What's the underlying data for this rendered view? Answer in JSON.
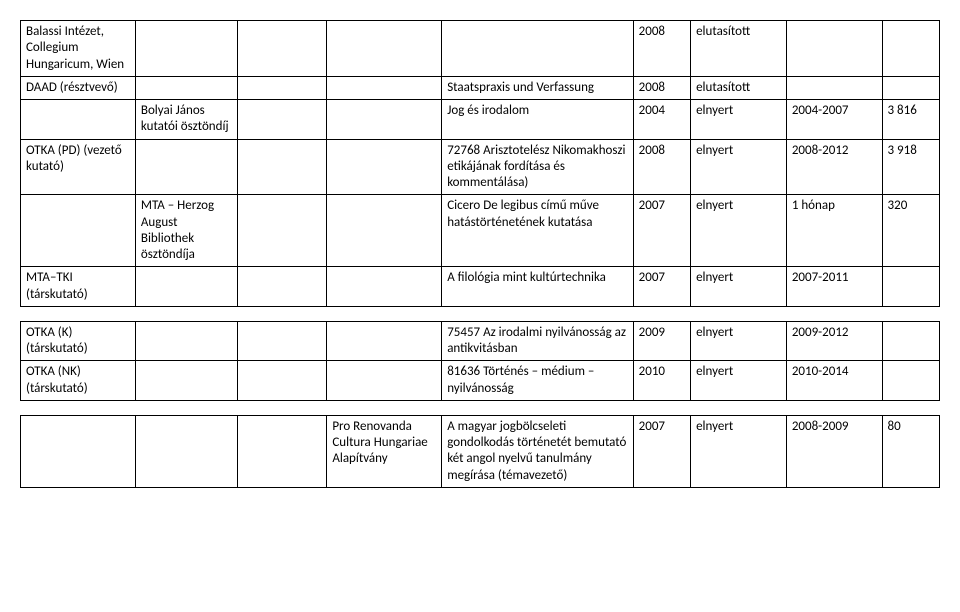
{
  "tables": {
    "t1": {
      "rows": [
        {
          "c1": "Balassi Intézet, Collegium Hungaricum, Wien",
          "c2": "",
          "c3": "",
          "c4": "",
          "c5": "",
          "c6": "2008",
          "c7": "elutasított",
          "c8": "",
          "c9": ""
        },
        {
          "c1": "DAAD (résztvevő)",
          "c2": "",
          "c3": "",
          "c4": "",
          "c5": "Staatspraxis und Verfassung",
          "c6": "2008",
          "c7": "elutasított",
          "c8": "",
          "c9": ""
        },
        {
          "c1": "",
          "c2": "Bolyai János kutatói ösztöndíj",
          "c3": "",
          "c4": "",
          "c5": "Jog és irodalom",
          "c6": "2004",
          "c7": "elnyert",
          "c8": "2004-2007",
          "c9": "3 816"
        },
        {
          "c1": "OTKA (PD) (vezető kutató)",
          "c2": "",
          "c3": "",
          "c4": "",
          "c5": "72768 Arisztotelész Nikomakhoszi etikájának fordítása és kommentálása)",
          "c6": "2008",
          "c7": "elnyert",
          "c8": "2008-2012",
          "c9": "3 918"
        },
        {
          "c1": "",
          "c2": "MTA – Herzog August Bibliothek ösztöndíja",
          "c3": "",
          "c4": "",
          "c5": "Cicero De legibus című műve hatástörténetének kutatása",
          "c6": "2007",
          "c7": "elnyert",
          "c8": "1 hónap",
          "c9": "320"
        },
        {
          "c1": "MTA–TKI (társkutató)",
          "c2": "",
          "c3": "",
          "c4": "",
          "c5": "A filológia mint kultúrtechnika",
          "c6": "2007",
          "c7": "elnyert",
          "c8": "2007-2011",
          "c9": ""
        }
      ]
    },
    "t2": {
      "rows": [
        {
          "c1": "OTKA (K) (társkutató)",
          "c2": "",
          "c3": "",
          "c4": "",
          "c5": "75457 Az irodalmi nyilvánosság az antikvitásban",
          "c6": "2009",
          "c7": "elnyert",
          "c8": "2009-2012",
          "c9": ""
        },
        {
          "c1": "OTKA (NK) (társkutató)",
          "c2": "",
          "c3": "",
          "c4": "",
          "c5": "81636 Történés – médium – nyilvánosság",
          "c6": "2010",
          "c7": "elnyert",
          "c8": "2010-2014",
          "c9": ""
        }
      ]
    },
    "t3": {
      "rows": [
        {
          "c1": "",
          "c2": "",
          "c3": "",
          "c4": "Pro Renovanda Cultura Hungariae Alapítvány",
          "c5": "A magyar jogbölcseleti gondolkodás történetét bemutató két angol nyelvű tanulmány megírása (témavezető)",
          "c6": "2007",
          "c7": "elnyert",
          "c8": "2008-2009",
          "c9": "80"
        }
      ]
    }
  }
}
